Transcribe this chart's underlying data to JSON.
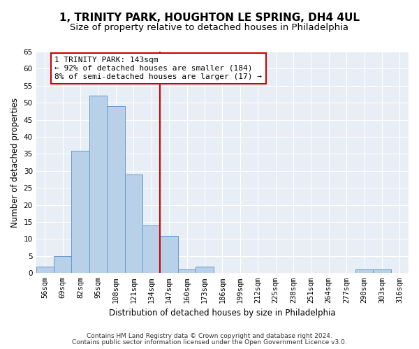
{
  "title": "1, TRINITY PARK, HOUGHTON LE SPRING, DH4 4UL",
  "subtitle": "Size of property relative to detached houses in Philadelphia",
  "xlabel": "Distribution of detached houses by size in Philadelphia",
  "ylabel": "Number of detached properties",
  "bar_values": [
    2,
    5,
    36,
    52,
    49,
    29,
    14,
    11,
    1,
    2,
    0,
    0,
    0,
    0,
    0,
    0,
    0,
    0,
    1,
    1,
    0
  ],
  "bin_labels": [
    "56sqm",
    "69sqm",
    "82sqm",
    "95sqm",
    "108sqm",
    "121sqm",
    "134sqm",
    "147sqm",
    "160sqm",
    "173sqm",
    "186sqm",
    "199sqm",
    "212sqm",
    "225sqm",
    "238sqm",
    "251sqm",
    "264sqm",
    "277sqm",
    "290sqm",
    "303sqm",
    "316sqm"
  ],
  "bar_color": "#b8d0e8",
  "bar_edge_color": "#6699cc",
  "vline_x": 6.5,
  "vline_color": "#cc0000",
  "annotation_text": "1 TRINITY PARK: 143sqm\n← 92% of detached houses are smaller (184)\n8% of semi-detached houses are larger (17) →",
  "annotation_box_color": "#ffffff",
  "annotation_box_edge": "#cc0000",
  "ylim": [
    0,
    65
  ],
  "yticks": [
    0,
    5,
    10,
    15,
    20,
    25,
    30,
    35,
    40,
    45,
    50,
    55,
    60,
    65
  ],
  "background_color": "#e8eef5",
  "footer_line1": "Contains HM Land Registry data © Crown copyright and database right 2024.",
  "footer_line2": "Contains public sector information licensed under the Open Government Licence v3.0.",
  "title_fontsize": 11,
  "subtitle_fontsize": 9.5,
  "axis_label_fontsize": 8.5,
  "tick_fontsize": 7.5,
  "annotation_fontsize": 8,
  "footer_fontsize": 6.5
}
